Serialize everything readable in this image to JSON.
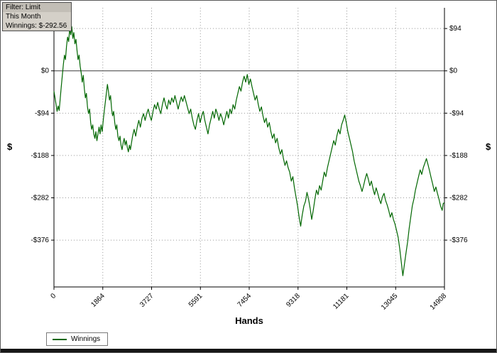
{
  "tooltip": {
    "lines": [
      "Filter: Limit",
      "This Month",
      "Winnings: $-292.56"
    ]
  },
  "chart_data": {
    "type": "line",
    "title": "",
    "xlabel": "Hands",
    "ylabel_left": "$",
    "ylabel_right": "$",
    "legend_position": "bottom-left",
    "grid": "dotted",
    "line_color": "#006600",
    "grid_color": "#9a9a9a",
    "axis_color": "#000000",
    "zero_line_value": 0,
    "xlim": [
      0,
      14908
    ],
    "ylim": [
      -480,
      140
    ],
    "x_ticks": [
      0,
      1864,
      3727,
      5591,
      7454,
      9318,
      11181,
      13045,
      14908
    ],
    "y_ticks": [
      94,
      0,
      -94,
      -188,
      -282,
      -376
    ],
    "y_tick_labels": [
      "$94",
      "$0",
      "-$94",
      "-$188",
      "-$282",
      "-$376"
    ],
    "final_winnings": -292.56,
    "series": [
      {
        "name": "Winnings",
        "points": [
          [
            0,
            -45
          ],
          [
            40,
            -60
          ],
          [
            80,
            -75
          ],
          [
            120,
            -90
          ],
          [
            160,
            -78
          ],
          [
            200,
            -88
          ],
          [
            240,
            -60
          ],
          [
            280,
            -35
          ],
          [
            320,
            -10
          ],
          [
            360,
            15
          ],
          [
            400,
            35
          ],
          [
            440,
            25
          ],
          [
            480,
            55
          ],
          [
            520,
            75
          ],
          [
            560,
            65
          ],
          [
            600,
            92
          ],
          [
            640,
            80
          ],
          [
            680,
            98
          ],
          [
            720,
            72
          ],
          [
            760,
            85
          ],
          [
            800,
            60
          ],
          [
            840,
            70
          ],
          [
            880,
            45
          ],
          [
            920,
            25
          ],
          [
            960,
            35
          ],
          [
            1000,
            10
          ],
          [
            1040,
            -5
          ],
          [
            1080,
            -25
          ],
          [
            1120,
            -10
          ],
          [
            1160,
            -40
          ],
          [
            1200,
            -60
          ],
          [
            1240,
            -50
          ],
          [
            1280,
            -80
          ],
          [
            1320,
            -95
          ],
          [
            1360,
            -85
          ],
          [
            1400,
            -115
          ],
          [
            1440,
            -130
          ],
          [
            1480,
            -120
          ],
          [
            1520,
            -140
          ],
          [
            1560,
            -150
          ],
          [
            1600,
            -135
          ],
          [
            1640,
            -155
          ],
          [
            1680,
            -140
          ],
          [
            1720,
            -125
          ],
          [
            1760,
            -140
          ],
          [
            1800,
            -120
          ],
          [
            1840,
            -135
          ],
          [
            1880,
            -110
          ],
          [
            1920,
            -90
          ],
          [
            1960,
            -70
          ],
          [
            2000,
            -50
          ],
          [
            2040,
            -30
          ],
          [
            2080,
            -45
          ],
          [
            2120,
            -65
          ],
          [
            2160,
            -55
          ],
          [
            2200,
            -85
          ],
          [
            2240,
            -100
          ],
          [
            2280,
            -90
          ],
          [
            2320,
            -115
          ],
          [
            2360,
            -130
          ],
          [
            2400,
            -120
          ],
          [
            2440,
            -145
          ],
          [
            2480,
            -155
          ],
          [
            2520,
            -145
          ],
          [
            2560,
            -165
          ],
          [
            2600,
            -175
          ],
          [
            2640,
            -160
          ],
          [
            2680,
            -150
          ],
          [
            2720,
            -165
          ],
          [
            2760,
            -155
          ],
          [
            2800,
            -170
          ],
          [
            2840,
            -180
          ],
          [
            2880,
            -165
          ],
          [
            2920,
            -175
          ],
          [
            2960,
            -160
          ],
          [
            3000,
            -145
          ],
          [
            3060,
            -130
          ],
          [
            3120,
            -145
          ],
          [
            3180,
            -125
          ],
          [
            3240,
            -110
          ],
          [
            3300,
            -125
          ],
          [
            3360,
            -105
          ],
          [
            3420,
            -95
          ],
          [
            3480,
            -110
          ],
          [
            3540,
            -95
          ],
          [
            3600,
            -85
          ],
          [
            3660,
            -100
          ],
          [
            3720,
            -110
          ],
          [
            3780,
            -90
          ],
          [
            3840,
            -75
          ],
          [
            3900,
            -85
          ],
          [
            3960,
            -70
          ],
          [
            4020,
            -85
          ],
          [
            4080,
            -95
          ],
          [
            4140,
            -75
          ],
          [
            4200,
            -60
          ],
          [
            4260,
            -75
          ],
          [
            4320,
            -85
          ],
          [
            4380,
            -65
          ],
          [
            4440,
            -75
          ],
          [
            4500,
            -60
          ],
          [
            4560,
            -70
          ],
          [
            4620,
            -55
          ],
          [
            4680,
            -70
          ],
          [
            4740,
            -85
          ],
          [
            4800,
            -70
          ],
          [
            4860,
            -58
          ],
          [
            4920,
            -68
          ],
          [
            4980,
            -55
          ],
          [
            5040,
            -68
          ],
          [
            5100,
            -82
          ],
          [
            5160,
            -95
          ],
          [
            5220,
            -85
          ],
          [
            5280,
            -105
          ],
          [
            5340,
            -120
          ],
          [
            5400,
            -130
          ],
          [
            5460,
            -110
          ],
          [
            5520,
            -95
          ],
          [
            5580,
            -115
          ],
          [
            5640,
            -100
          ],
          [
            5700,
            -90
          ],
          [
            5760,
            -110
          ],
          [
            5820,
            -125
          ],
          [
            5880,
            -140
          ],
          [
            5940,
            -120
          ],
          [
            6000,
            -105
          ],
          [
            6060,
            -90
          ],
          [
            6120,
            -105
          ],
          [
            6180,
            -85
          ],
          [
            6240,
            -95
          ],
          [
            6300,
            -110
          ],
          [
            6360,
            -95
          ],
          [
            6420,
            -105
          ],
          [
            6480,
            -120
          ],
          [
            6540,
            -105
          ],
          [
            6600,
            -90
          ],
          [
            6660,
            -105
          ],
          [
            6720,
            -85
          ],
          [
            6780,
            -95
          ],
          [
            6840,
            -75
          ],
          [
            6900,
            -85
          ],
          [
            6960,
            -65
          ],
          [
            7020,
            -50
          ],
          [
            7080,
            -35
          ],
          [
            7140,
            -45
          ],
          [
            7200,
            -25
          ],
          [
            7260,
            -12
          ],
          [
            7320,
            -25
          ],
          [
            7380,
            -8
          ],
          [
            7440,
            -30
          ],
          [
            7500,
            -18
          ],
          [
            7560,
            -35
          ],
          [
            7620,
            -50
          ],
          [
            7680,
            -65
          ],
          [
            7740,
            -55
          ],
          [
            7800,
            -75
          ],
          [
            7860,
            -90
          ],
          [
            7920,
            -80
          ],
          [
            7980,
            -100
          ],
          [
            8040,
            -115
          ],
          [
            8100,
            -105
          ],
          [
            8160,
            -125
          ],
          [
            8220,
            -115
          ],
          [
            8280,
            -135
          ],
          [
            8340,
            -150
          ],
          [
            8400,
            -140
          ],
          [
            8460,
            -160
          ],
          [
            8520,
            -150
          ],
          [
            8580,
            -170
          ],
          [
            8640,
            -185
          ],
          [
            8700,
            -175
          ],
          [
            8760,
            -195
          ],
          [
            8820,
            -210
          ],
          [
            8880,
            -200
          ],
          [
            8940,
            -215
          ],
          [
            9000,
            -225
          ],
          [
            9060,
            -245
          ],
          [
            9120,
            -235
          ],
          [
            9180,
            -260
          ],
          [
            9240,
            -280
          ],
          [
            9300,
            -300
          ],
          [
            9360,
            -325
          ],
          [
            9420,
            -345
          ],
          [
            9480,
            -320
          ],
          [
            9540,
            -300
          ],
          [
            9600,
            -290
          ],
          [
            9660,
            -270
          ],
          [
            9720,
            -285
          ],
          [
            9780,
            -305
          ],
          [
            9840,
            -330
          ],
          [
            9900,
            -310
          ],
          [
            9960,
            -285
          ],
          [
            10020,
            -265
          ],
          [
            10080,
            -275
          ],
          [
            10140,
            -255
          ],
          [
            10200,
            -265
          ],
          [
            10260,
            -245
          ],
          [
            10320,
            -225
          ],
          [
            10380,
            -235
          ],
          [
            10440,
            -215
          ],
          [
            10500,
            -200
          ],
          [
            10560,
            -185
          ],
          [
            10620,
            -170
          ],
          [
            10680,
            -155
          ],
          [
            10740,
            -165
          ],
          [
            10800,
            -145
          ],
          [
            10860,
            -130
          ],
          [
            10920,
            -140
          ],
          [
            10980,
            -120
          ],
          [
            11040,
            -110
          ],
          [
            11100,
            -98
          ],
          [
            11160,
            -115
          ],
          [
            11220,
            -135
          ],
          [
            11280,
            -150
          ],
          [
            11340,
            -165
          ],
          [
            11400,
            -180
          ],
          [
            11460,
            -200
          ],
          [
            11520,
            -215
          ],
          [
            11580,
            -230
          ],
          [
            11640,
            -245
          ],
          [
            11700,
            -255
          ],
          [
            11760,
            -268
          ],
          [
            11820,
            -255
          ],
          [
            11880,
            -240
          ],
          [
            11940,
            -228
          ],
          [
            12000,
            -240
          ],
          [
            12060,
            -255
          ],
          [
            12120,
            -245
          ],
          [
            12180,
            -262
          ],
          [
            12240,
            -275
          ],
          [
            12300,
            -260
          ],
          [
            12360,
            -272
          ],
          [
            12420,
            -285
          ],
          [
            12480,
            -295
          ],
          [
            12540,
            -280
          ],
          [
            12600,
            -272
          ],
          [
            12660,
            -288
          ],
          [
            12720,
            -298
          ],
          [
            12780,
            -310
          ],
          [
            12840,
            -325
          ],
          [
            12900,
            -315
          ],
          [
            12960,
            -330
          ],
          [
            13020,
            -340
          ],
          [
            13080,
            -355
          ],
          [
            13140,
            -370
          ],
          [
            13200,
            -395
          ],
          [
            13260,
            -425
          ],
          [
            13320,
            -455
          ],
          [
            13380,
            -430
          ],
          [
            13440,
            -405
          ],
          [
            13500,
            -380
          ],
          [
            13560,
            -350
          ],
          [
            13620,
            -325
          ],
          [
            13680,
            -300
          ],
          [
            13740,
            -285
          ],
          [
            13800,
            -265
          ],
          [
            13860,
            -250
          ],
          [
            13920,
            -235
          ],
          [
            13980,
            -220
          ],
          [
            14040,
            -230
          ],
          [
            14100,
            -215
          ],
          [
            14160,
            -205
          ],
          [
            14220,
            -195
          ],
          [
            14280,
            -208
          ],
          [
            14340,
            -222
          ],
          [
            14400,
            -238
          ],
          [
            14460,
            -252
          ],
          [
            14520,
            -268
          ],
          [
            14580,
            -258
          ],
          [
            14640,
            -272
          ],
          [
            14700,
            -285
          ],
          [
            14760,
            -300
          ],
          [
            14820,
            -310
          ],
          [
            14860,
            -295
          ],
          [
            14908,
            -292.56
          ]
        ]
      }
    ]
  }
}
